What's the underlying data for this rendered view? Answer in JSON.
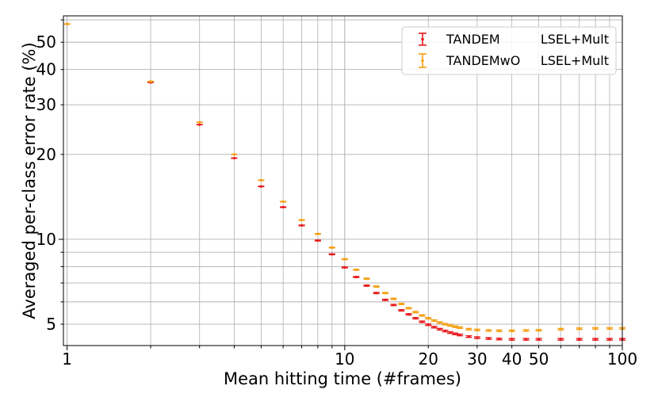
{
  "chart_data": {
    "type": "scatter",
    "xlabel": "Mean hitting time (#frames)",
    "ylabel": "Averaged per-class error rate (%)",
    "xscale": "log",
    "yscale": "log",
    "xlim": [
      0.97,
      100
    ],
    "ylim": [
      4.2,
      62
    ],
    "grid": true,
    "legend_position": "top-right",
    "xticks": [
      1,
      10,
      20,
      30,
      40,
      50,
      100
    ],
    "xtick_labels": [
      "1",
      "10",
      "20",
      "30",
      "40",
      "50",
      "100"
    ],
    "yticks": [
      5,
      10,
      20,
      30,
      40,
      50
    ],
    "ytick_labels": [
      "5",
      "10",
      "20",
      "30",
      "40",
      "50"
    ],
    "legend": [
      {
        "label_a": "TANDEM",
        "label_b": "LSEL+Mult"
      },
      {
        "label_a": "TANDEMwO",
        "label_b": "LSEL+Mult"
      }
    ],
    "series": [
      {
        "color": "#e8191c",
        "x": [
          1,
          2,
          3,
          4,
          5,
          6,
          7,
          8,
          9,
          10,
          11,
          12,
          13,
          14,
          15,
          16,
          17,
          18,
          19,
          20,
          21,
          22,
          23,
          24,
          25,
          26,
          28,
          30,
          33,
          36,
          40,
          45,
          50,
          60,
          70,
          80,
          90,
          100
        ],
        "y": [
          58,
          36,
          25.5,
          19.4,
          15.4,
          13.0,
          11.2,
          9.9,
          8.85,
          7.95,
          7.35,
          6.85,
          6.45,
          6.1,
          5.85,
          5.6,
          5.42,
          5.25,
          5.1,
          4.98,
          4.88,
          4.8,
          4.73,
          4.67,
          4.62,
          4.58,
          4.52,
          4.48,
          4.45,
          4.43,
          4.42,
          4.42,
          4.42,
          4.42,
          4.42,
          4.42,
          4.42,
          4.42
        ],
        "yerr": 0.03
      },
      {
        "color": "#f5a014",
        "x": [
          1,
          2,
          3,
          4,
          5,
          6,
          7,
          8,
          9,
          10,
          11,
          12,
          13,
          14,
          15,
          16,
          17,
          18,
          19,
          20,
          21,
          22,
          23,
          24,
          25,
          26,
          28,
          30,
          33,
          36,
          40,
          45,
          50,
          60,
          70,
          80,
          90,
          100
        ],
        "y": [
          58,
          36.3,
          26,
          20,
          16.2,
          13.6,
          11.7,
          10.45,
          9.35,
          8.5,
          7.8,
          7.25,
          6.8,
          6.45,
          6.15,
          5.9,
          5.7,
          5.52,
          5.37,
          5.25,
          5.15,
          5.07,
          5.0,
          4.95,
          4.9,
          4.86,
          4.8,
          4.77,
          4.75,
          4.74,
          4.74,
          4.75,
          4.76,
          4.8,
          4.82,
          4.83,
          4.83,
          4.83
        ],
        "yerr": 0.03
      }
    ]
  }
}
